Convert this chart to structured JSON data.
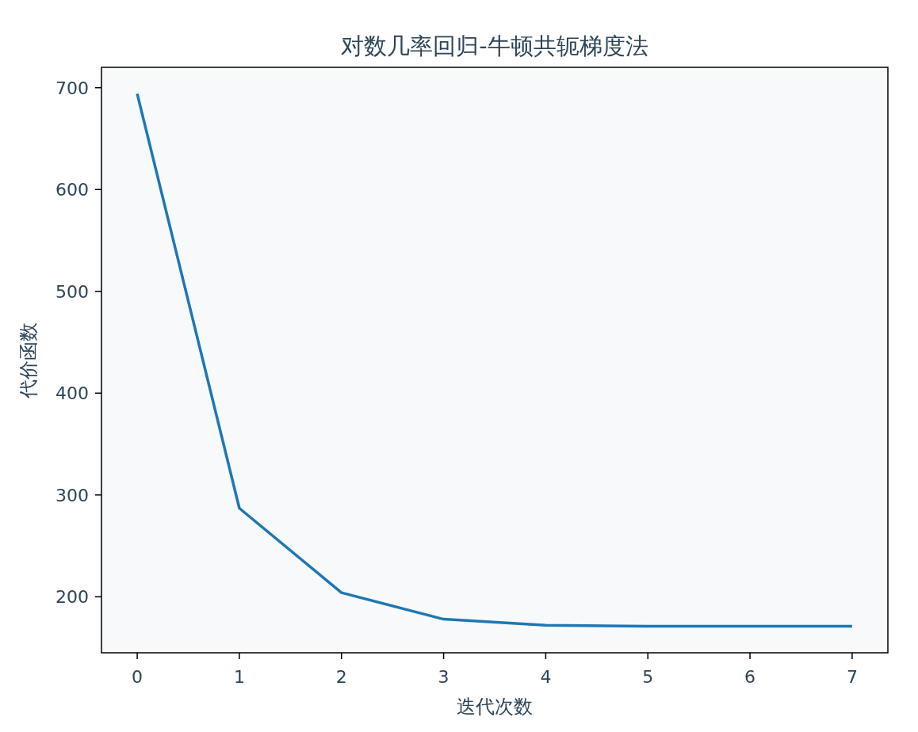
{
  "chart_data": {
    "type": "line",
    "title": "对数几率回归-牛顿共轭梯度法",
    "xlabel": "迭代次数",
    "ylabel": "代价函数",
    "x": [
      0,
      1,
      2,
      3,
      4,
      5,
      6,
      7
    ],
    "series": [
      {
        "color": "#1f77b4",
        "values": [
          694,
          287,
          204,
          178,
          172,
          171,
          171,
          171
        ]
      }
    ],
    "xlim": [
      -0.35,
      7.35
    ],
    "ylim": [
      145,
      720
    ],
    "xticks": [
      0,
      1,
      2,
      3,
      4,
      5,
      6,
      7
    ],
    "yticks": [
      200,
      300,
      400,
      500,
      600,
      700
    ],
    "grid": false,
    "marker": "none",
    "line_style": "solid"
  }
}
